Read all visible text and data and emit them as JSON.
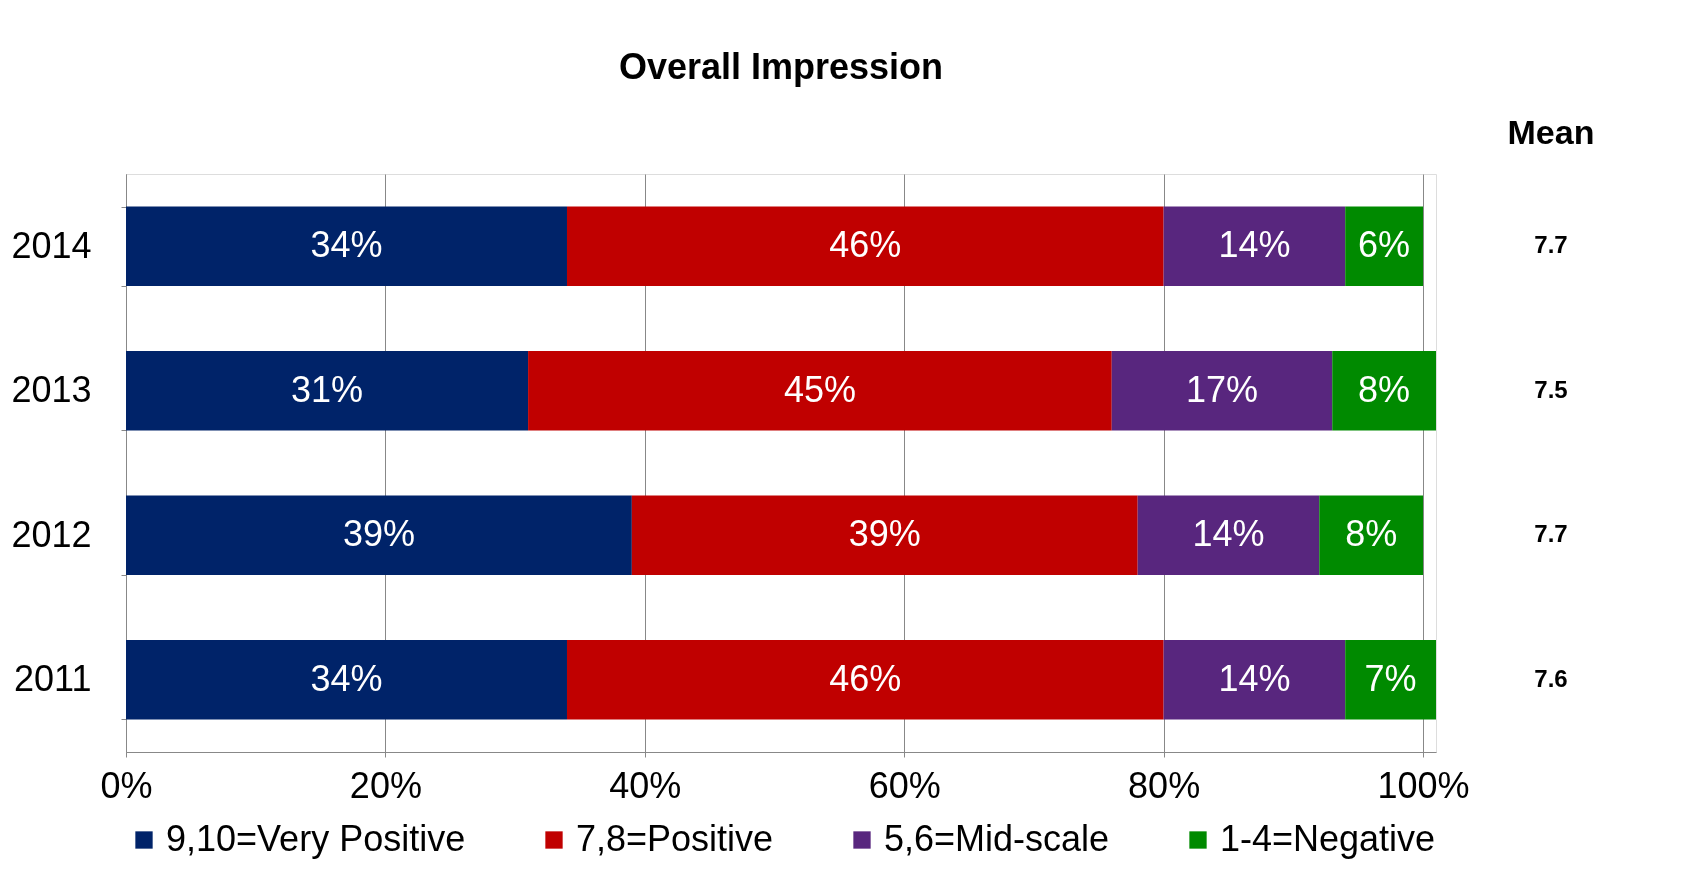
{
  "chart_data": {
    "type": "bar",
    "orientation": "horizontal",
    "stacked": true,
    "title": "Overall Impression",
    "categories": [
      "2014",
      "2013",
      "2012",
      "2011"
    ],
    "series": [
      {
        "name": "9,10=Very Positive",
        "color": "#002369",
        "values": [
          34,
          31,
          39,
          34
        ],
        "value_labels": [
          "34%",
          "31%",
          "39%",
          "34%"
        ]
      },
      {
        "name": "7,8=Positive",
        "color": "#c00000",
        "values": [
          46,
          45,
          39,
          46
        ],
        "value_labels": [
          "46%",
          "45%",
          "39%",
          "46%"
        ]
      },
      {
        "name": "5,6=Mid-scale",
        "color": "#58267e",
        "values": [
          14,
          17,
          14,
          14
        ],
        "value_labels": [
          "14%",
          "17%",
          "14%",
          "14%"
        ]
      },
      {
        "name": "1-4=Negative",
        "color": "#008a00",
        "values": [
          6,
          8,
          8,
          7
        ],
        "value_labels": [
          "6%",
          "8%",
          "8%",
          "7%"
        ]
      }
    ],
    "xlim": [
      0,
      101
    ],
    "xticks": [
      {
        "value": 0,
        "label": "0%"
      },
      {
        "value": 20,
        "label": "20%"
      },
      {
        "value": 40,
        "label": "40%"
      },
      {
        "value": 60,
        "label": "60%"
      },
      {
        "value": 80,
        "label": "80%"
      },
      {
        "value": 100,
        "label": "100%"
      }
    ],
    "grid": "x",
    "legend": "bottom",
    "annotations": [
      "Mean",
      "7.7",
      "7.5",
      "7.7",
      "7.6"
    ]
  }
}
